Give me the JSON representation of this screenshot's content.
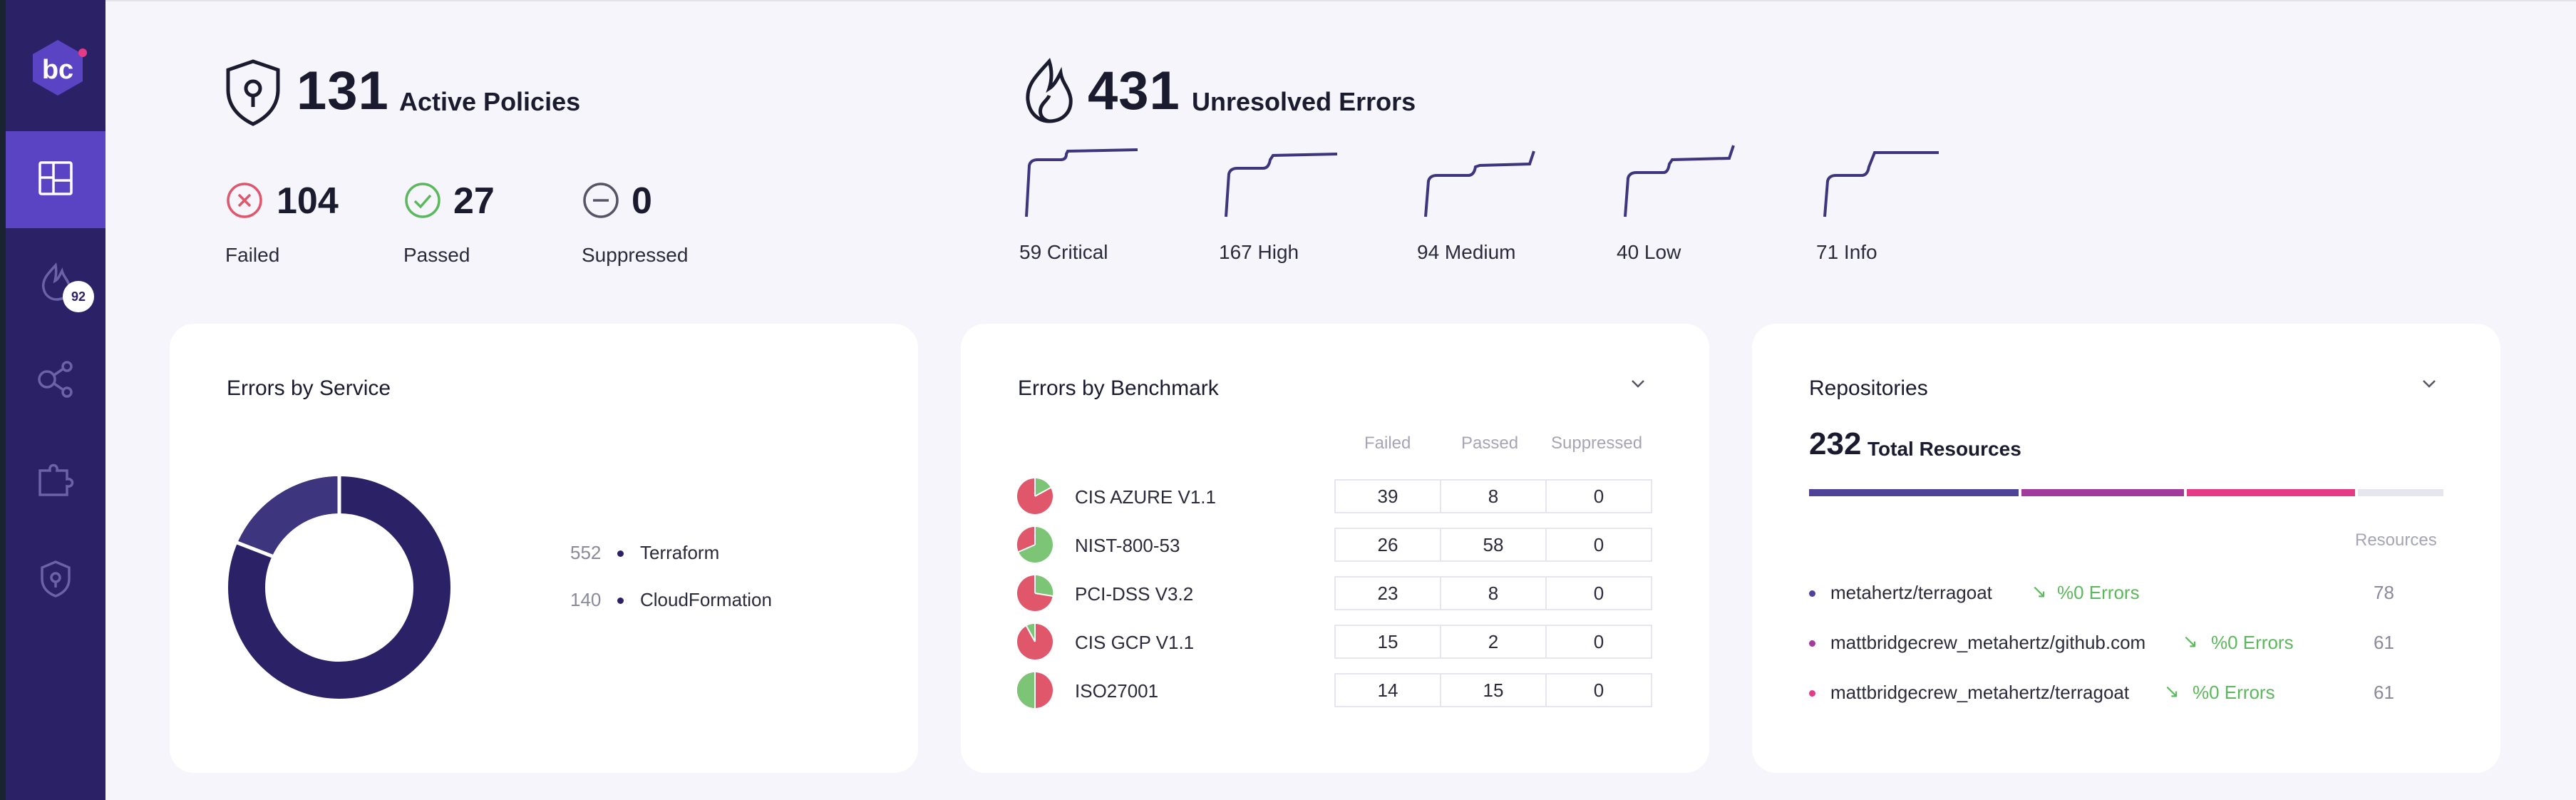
{
  "sidebar": {
    "logo_text": "bc",
    "notification_count": "92",
    "items": [
      {
        "icon": "dashboard-icon"
      },
      {
        "icon": "flame-icon"
      },
      {
        "icon": "connections-icon"
      },
      {
        "icon": "puzzle-icon"
      },
      {
        "icon": "shield-icon"
      }
    ]
  },
  "policies": {
    "count": "131",
    "label": "Active Policies",
    "failed": {
      "count": "104",
      "label": "Failed"
    },
    "passed": {
      "count": "27",
      "label": "Passed"
    },
    "suppressed": {
      "count": "0",
      "label": "Suppressed"
    }
  },
  "errors": {
    "count": "431",
    "label": "Unresolved Errors",
    "severities": [
      {
        "label": "59 Critical"
      },
      {
        "label": "167 High"
      },
      {
        "label": "94 Medium"
      },
      {
        "label": "40 Low"
      },
      {
        "label": "71 Info"
      }
    ]
  },
  "errors_by_service": {
    "title": "Errors by Service",
    "items": [
      {
        "value": "552",
        "name": "Terraform",
        "color": "#2b2166"
      },
      {
        "value": "140",
        "name": "CloudFormation",
        "color": "#3d357d"
      }
    ]
  },
  "errors_by_benchmark": {
    "title": "Errors by Benchmark",
    "columns": [
      "Failed",
      "Passed",
      "Suppressed"
    ],
    "rows": [
      {
        "name": "CIS AZURE V1.1",
        "failed": "39",
        "passed": "8",
        "suppressed": "0"
      },
      {
        "name": "NIST-800-53",
        "failed": "26",
        "passed": "58",
        "suppressed": "0"
      },
      {
        "name": "PCI-DSS V3.2",
        "failed": "23",
        "passed": "8",
        "suppressed": "0"
      },
      {
        "name": "CIS GCP V1.1",
        "failed": "15",
        "passed": "2",
        "suppressed": "0"
      },
      {
        "name": "ISO27001",
        "failed": "14",
        "passed": "15",
        "suppressed": "0"
      }
    ],
    "colors": {
      "failed": "#e0566b",
      "passed": "#7cc576"
    }
  },
  "repositories": {
    "title": "Repositories",
    "total_count": "232",
    "total_label": "Total Resources",
    "resources_header": "Resources",
    "bar_colors": [
      "#4f4299",
      "#a13a9a",
      "#e53b86",
      "#e6e6ee"
    ],
    "items": [
      {
        "name": "metahertz/terragoat",
        "errors": "%0 Errors",
        "resources": "78",
        "color": "#4f4299"
      },
      {
        "name": "mattbridgecrew_metahertz/github.com",
        "errors": "%0 Errors",
        "resources": "61",
        "color": "#a13a9a"
      },
      {
        "name": "mattbridgecrew_metahertz/terragoat",
        "errors": "%0 Errors",
        "resources": "61",
        "color": "#e53b86"
      }
    ]
  }
}
